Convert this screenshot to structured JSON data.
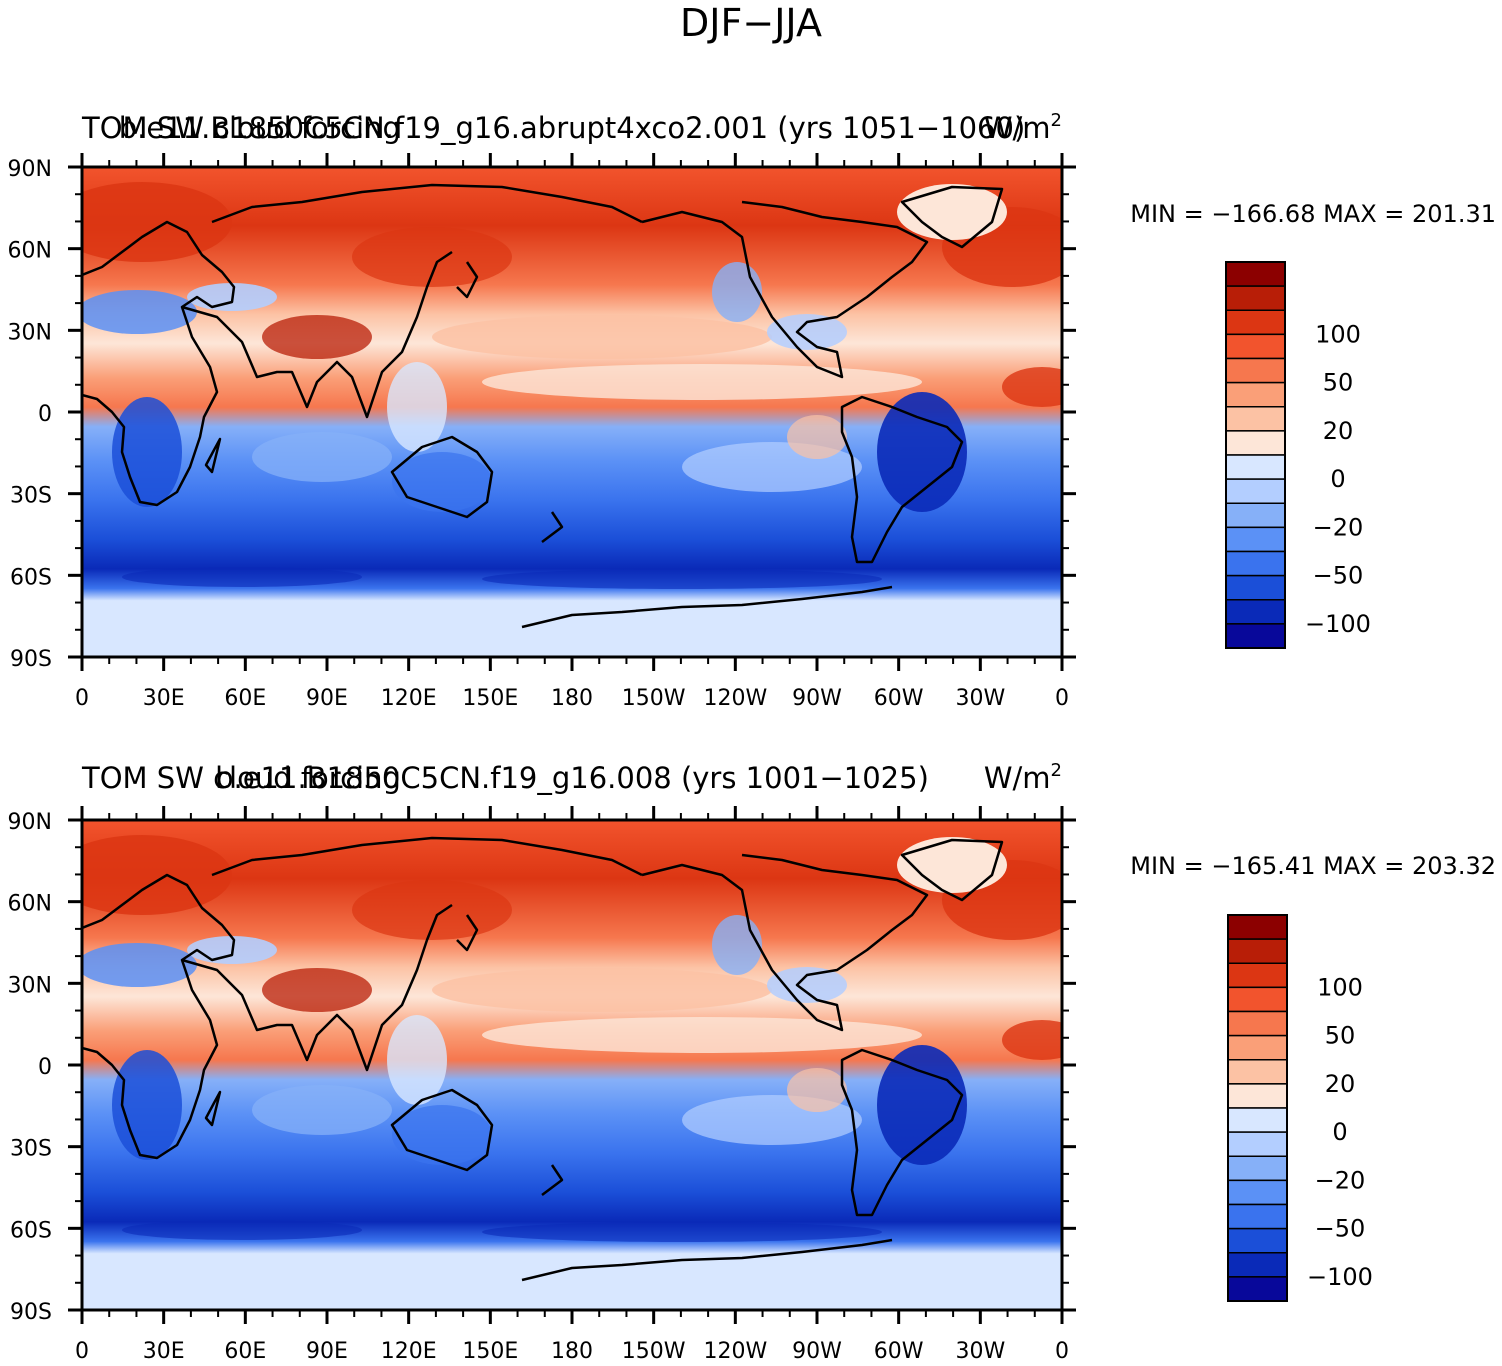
{
  "figure": {
    "main_title": "DJF−JJA"
  },
  "colorbar": {
    "colors": [
      "#08089a",
      "#0a2ab8",
      "#1b4fd8",
      "#3a73ee",
      "#5b91f6",
      "#86b0f8",
      "#b3ceff",
      "#d8e7ff",
      "#fde6d8",
      "#fcc2a4",
      "#fa9f78",
      "#f6774e",
      "#f2542d",
      "#dc3613",
      "#b81e07",
      "#8c0000"
    ],
    "tick_labels": [
      {
        "label": "100",
        "at_edge": 13
      },
      {
        "label": "50",
        "at_edge": 11
      },
      {
        "label": "20",
        "at_edge": 9
      },
      {
        "label": "0",
        "at_edge": 7
      },
      {
        "label": "−20",
        "at_edge": 5
      },
      {
        "label": "−50",
        "at_edge": 3
      },
      {
        "label": "−100",
        "at_edge": 1
      }
    ]
  },
  "axes": {
    "lat_labels": [
      "90N",
      "60N",
      "30N",
      "0",
      "30S",
      "60S",
      "90S"
    ],
    "lon_labels": [
      "0",
      "30E",
      "60E",
      "90E",
      "120E",
      "150E",
      "180",
      "150W",
      "120W",
      "90W",
      "60W",
      "30W",
      "0"
    ]
  },
  "panels": [
    {
      "title_left": "TOM SW cloud forcing",
      "title_center": "b.e11.B1850C5CN.f19_g16.abrupt4xco2.001 (yrs 1051−1060)",
      "units_base": "W/m",
      "units_exp": "2",
      "min_max": "MIN = −166.68  MAX = 201.31"
    },
    {
      "title_left": "TOM SW cloud forcing",
      "title_center": "b.e11.B1850C5CN.f19_g16.008 (yrs 1001−1025)",
      "units_base": "W/m",
      "units_exp": "2",
      "min_max": "MIN = −165.41  MAX = 203.32"
    }
  ]
}
